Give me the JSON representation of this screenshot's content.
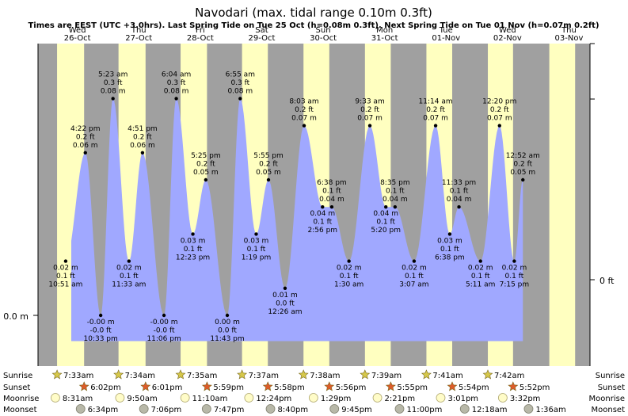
{
  "title": "Navodari (max. tidal range 0.10m 0.3ft)",
  "subtitle": "Times are EEST (UTC +3.0hrs). Last Spring Tide on Tue 25 Oct (h=0.08m 0.3ft). Next Spring Tide on Tue 01 Nov (h=0.07m 0.2ft)",
  "days": [
    {
      "dow": "Wed",
      "date": "26-Oct"
    },
    {
      "dow": "Thu",
      "date": "27-Oct"
    },
    {
      "dow": "Fri",
      "date": "28-Oct"
    },
    {
      "dow": "Sat",
      "date": "29-Oct"
    },
    {
      "dow": "Sun",
      "date": "30-Oct"
    },
    {
      "dow": "Mon",
      "date": "31-Oct"
    },
    {
      "dow": "Tue",
      "date": "01-Nov"
    },
    {
      "dow": "Wed",
      "date": "02-Nov"
    },
    {
      "dow": "Thu",
      "date": "03-Nov"
    }
  ],
  "axis": {
    "left_label": "0.0 m",
    "right_label": "0 ft"
  },
  "chart_data": {
    "type": "area",
    "x_unit": "days from 00:00 Wed 26-Oct (EEST)",
    "y_unit": "m",
    "ylim": [
      -0.02,
      0.1
    ],
    "tides": [
      {
        "x": 0.45,
        "y": 0.02,
        "lines": [
          "0.02 m",
          "0.1 ft",
          "10:51 am"
        ],
        "pos": "below"
      },
      {
        "x": 0.77,
        "y": 0.06,
        "lines": [
          "4:22 pm",
          "0.2 ft",
          "0.06 m"
        ],
        "pos": "above"
      },
      {
        "x": 1.02,
        "y": 0.0,
        "lines": [
          "-0.00 m",
          "-0.0 ft",
          "10:33 pm"
        ],
        "pos": "below"
      },
      {
        "x": 1.22,
        "y": 0.08,
        "lines": [
          "5:23 am",
          "0.3 ft",
          "0.08 m"
        ],
        "pos": "above"
      },
      {
        "x": 1.48,
        "y": 0.02,
        "lines": [
          "0.02 m",
          "0.1 ft",
          "11:33 am"
        ],
        "pos": "below"
      },
      {
        "x": 1.7,
        "y": 0.06,
        "lines": [
          "4:51 pm",
          "0.2 ft",
          "0.06 m"
        ],
        "pos": "above"
      },
      {
        "x": 2.05,
        "y": 0.0,
        "lines": [
          "-0.00 m",
          "-0.0 ft",
          "11:06 pm"
        ],
        "pos": "below"
      },
      {
        "x": 2.25,
        "y": 0.08,
        "lines": [
          "6:04 am",
          "0.3 ft",
          "0.08 m"
        ],
        "pos": "above"
      },
      {
        "x": 2.52,
        "y": 0.03,
        "lines": [
          "0.03 m",
          "0.1 ft",
          "12:23 pm"
        ],
        "pos": "below"
      },
      {
        "x": 2.73,
        "y": 0.05,
        "lines": [
          "5:25 pm",
          "0.2 ft",
          "0.05 m"
        ],
        "pos": "above"
      },
      {
        "x": 3.08,
        "y": 0.0,
        "lines": [
          "0.00 m",
          "0.0 ft",
          "11:43 pm"
        ],
        "pos": "below"
      },
      {
        "x": 3.29,
        "y": 0.08,
        "lines": [
          "6:55 am",
          "0.3 ft",
          "0.08 m"
        ],
        "pos": "above"
      },
      {
        "x": 3.55,
        "y": 0.03,
        "lines": [
          "0.03 m",
          "0.1 ft",
          "1:19 pm"
        ],
        "pos": "below"
      },
      {
        "x": 3.75,
        "y": 0.05,
        "lines": [
          "5:55 pm",
          "0.2 ft",
          "0.05 m"
        ],
        "pos": "above"
      },
      {
        "x": 4.02,
        "y": 0.01,
        "lines": [
          "0.01 m",
          "0.0 ft",
          "12:26 am"
        ],
        "pos": "below"
      },
      {
        "x": 4.33,
        "y": 0.07,
        "lines": [
          "8:03 am",
          "0.2 ft",
          "0.07 m"
        ],
        "pos": "above"
      },
      {
        "x": 4.78,
        "y": 0.04,
        "lines": [
          "6:38 pm",
          "0.1 ft",
          "0.04 m"
        ],
        "pos": "above-left"
      },
      {
        "x": 4.63,
        "y": 0.04,
        "lines": [
          "0.04 m",
          "0.1 ft",
          "2:56 pm"
        ],
        "pos": "below"
      },
      {
        "x": 5.06,
        "y": 0.02,
        "lines": [
          "0.02 m",
          "0.1 ft",
          "1:30 am"
        ],
        "pos": "below"
      },
      {
        "x": 5.4,
        "y": 0.07,
        "lines": [
          "9:33 am",
          "0.2 ft",
          "0.07 m"
        ],
        "pos": "above"
      },
      {
        "x": 5.66,
        "y": 0.04,
        "lines": [
          "0.04 m",
          "0.1 ft",
          "5:20 pm"
        ],
        "pos": "below"
      },
      {
        "x": 5.81,
        "y": 0.04,
        "lines": [
          "8:35 pm",
          "0.1 ft",
          "0.04 m"
        ],
        "pos": "above"
      },
      {
        "x": 6.12,
        "y": 0.02,
        "lines": [
          "0.02 m",
          "0.1 ft",
          "3:07 am"
        ],
        "pos": "below"
      },
      {
        "x": 6.47,
        "y": 0.07,
        "lines": [
          "11:14 am",
          "0.2 ft",
          "0.07 m"
        ],
        "pos": "above"
      },
      {
        "x": 6.7,
        "y": 0.03,
        "lines": [
          "0.03 m",
          "0.1 ft",
          "6:38 pm"
        ],
        "pos": "below"
      },
      {
        "x": 6.85,
        "y": 0.04,
        "lines": [
          "11:33 pm",
          "0.1 ft",
          "0.04 m"
        ],
        "pos": "above"
      },
      {
        "x": 7.2,
        "y": 0.02,
        "lines": [
          "0.02 m",
          "0.1 ft",
          "5:11 am"
        ],
        "pos": "below"
      },
      {
        "x": 7.51,
        "y": 0.07,
        "lines": [
          "12:20 pm",
          "0.2 ft",
          "0.07 m"
        ],
        "pos": "above"
      },
      {
        "x": 7.75,
        "y": 0.02,
        "lines": [
          "0.02 m",
          "0.1 ft",
          "7:15 pm"
        ],
        "pos": "below"
      },
      {
        "x": 7.89,
        "y": 0.05,
        "lines": [
          "12:52 am",
          "0.2 ft",
          "0.05 m"
        ],
        "pos": "above"
      }
    ],
    "curve_start": {
      "x": 0.0,
      "y": 0.08
    },
    "daylight": [
      {
        "sunrise": 0.31,
        "sunset": 0.75
      },
      {
        "sunrise": 1.31,
        "sunset": 1.75
      },
      {
        "sunrise": 2.32,
        "sunset": 2.75
      },
      {
        "sunrise": 3.32,
        "sunset": 3.74
      },
      {
        "sunrise": 4.32,
        "sunset": 4.74
      },
      {
        "sunrise": 5.32,
        "sunset": 5.74
      },
      {
        "sunrise": 6.32,
        "sunset": 6.74
      },
      {
        "sunrise": 7.32,
        "sunset": 7.73
      },
      {
        "sunrise": 8.32,
        "sunset": 8.74
      }
    ]
  },
  "astro": {
    "row_labels": [
      "Sunrise",
      "Sunset",
      "Moonrise",
      "Moonset"
    ],
    "sunrise": [
      {
        "x": 0.31,
        "t": "7:33am"
      },
      {
        "x": 1.31,
        "t": "7:34am"
      },
      {
        "x": 2.32,
        "t": "7:35am"
      },
      {
        "x": 3.32,
        "t": "7:37am"
      },
      {
        "x": 4.32,
        "t": "7:38am"
      },
      {
        "x": 5.32,
        "t": "7:39am"
      },
      {
        "x": 6.32,
        "t": "7:41am"
      },
      {
        "x": 7.32,
        "t": "7:42am"
      }
    ],
    "sunset": [
      {
        "x": 0.75,
        "t": "6:02pm"
      },
      {
        "x": 1.75,
        "t": "6:01pm"
      },
      {
        "x": 2.75,
        "t": "5:59pm"
      },
      {
        "x": 3.74,
        "t": "5:58pm"
      },
      {
        "x": 4.74,
        "t": "5:56pm"
      },
      {
        "x": 5.74,
        "t": "5:55pm"
      },
      {
        "x": 6.74,
        "t": "5:54pm"
      },
      {
        "x": 7.73,
        "t": "5:52pm"
      }
    ],
    "moonrise": [
      {
        "x": 0.36,
        "t": "8:31am"
      },
      {
        "x": 1.41,
        "t": "9:50am"
      },
      {
        "x": 2.47,
        "t": "11:10am"
      },
      {
        "x": 3.51,
        "t": "12:24pm"
      },
      {
        "x": 4.56,
        "t": "1:29pm"
      },
      {
        "x": 5.6,
        "t": "2:21pm"
      },
      {
        "x": 6.63,
        "t": "3:01pm"
      },
      {
        "x": 7.64,
        "t": "3:32pm"
      }
    ],
    "moonset": [
      {
        "x": 0.77,
        "t": "6:34pm"
      },
      {
        "x": 1.8,
        "t": "7:06pm"
      },
      {
        "x": 2.82,
        "t": "7:47pm"
      },
      {
        "x": 3.86,
        "t": "8:40pm"
      },
      {
        "x": 4.9,
        "t": "9:45pm"
      },
      {
        "x": 5.96,
        "t": "11:00pm"
      },
      {
        "x": 7.02,
        "t": "12:18am"
      },
      {
        "x": 8.06,
        "t": "1:36am"
      }
    ]
  },
  "colors": {
    "night": "#a0a0a0",
    "day": "#ffffc0",
    "water": "#a0a8ff",
    "sun_star": "#d6c84a",
    "sunset_star": "#dd5c2a",
    "moon_full": "#fffcc8",
    "moon_grey": "#b8b8a8",
    "day_red": "#e00000"
  }
}
